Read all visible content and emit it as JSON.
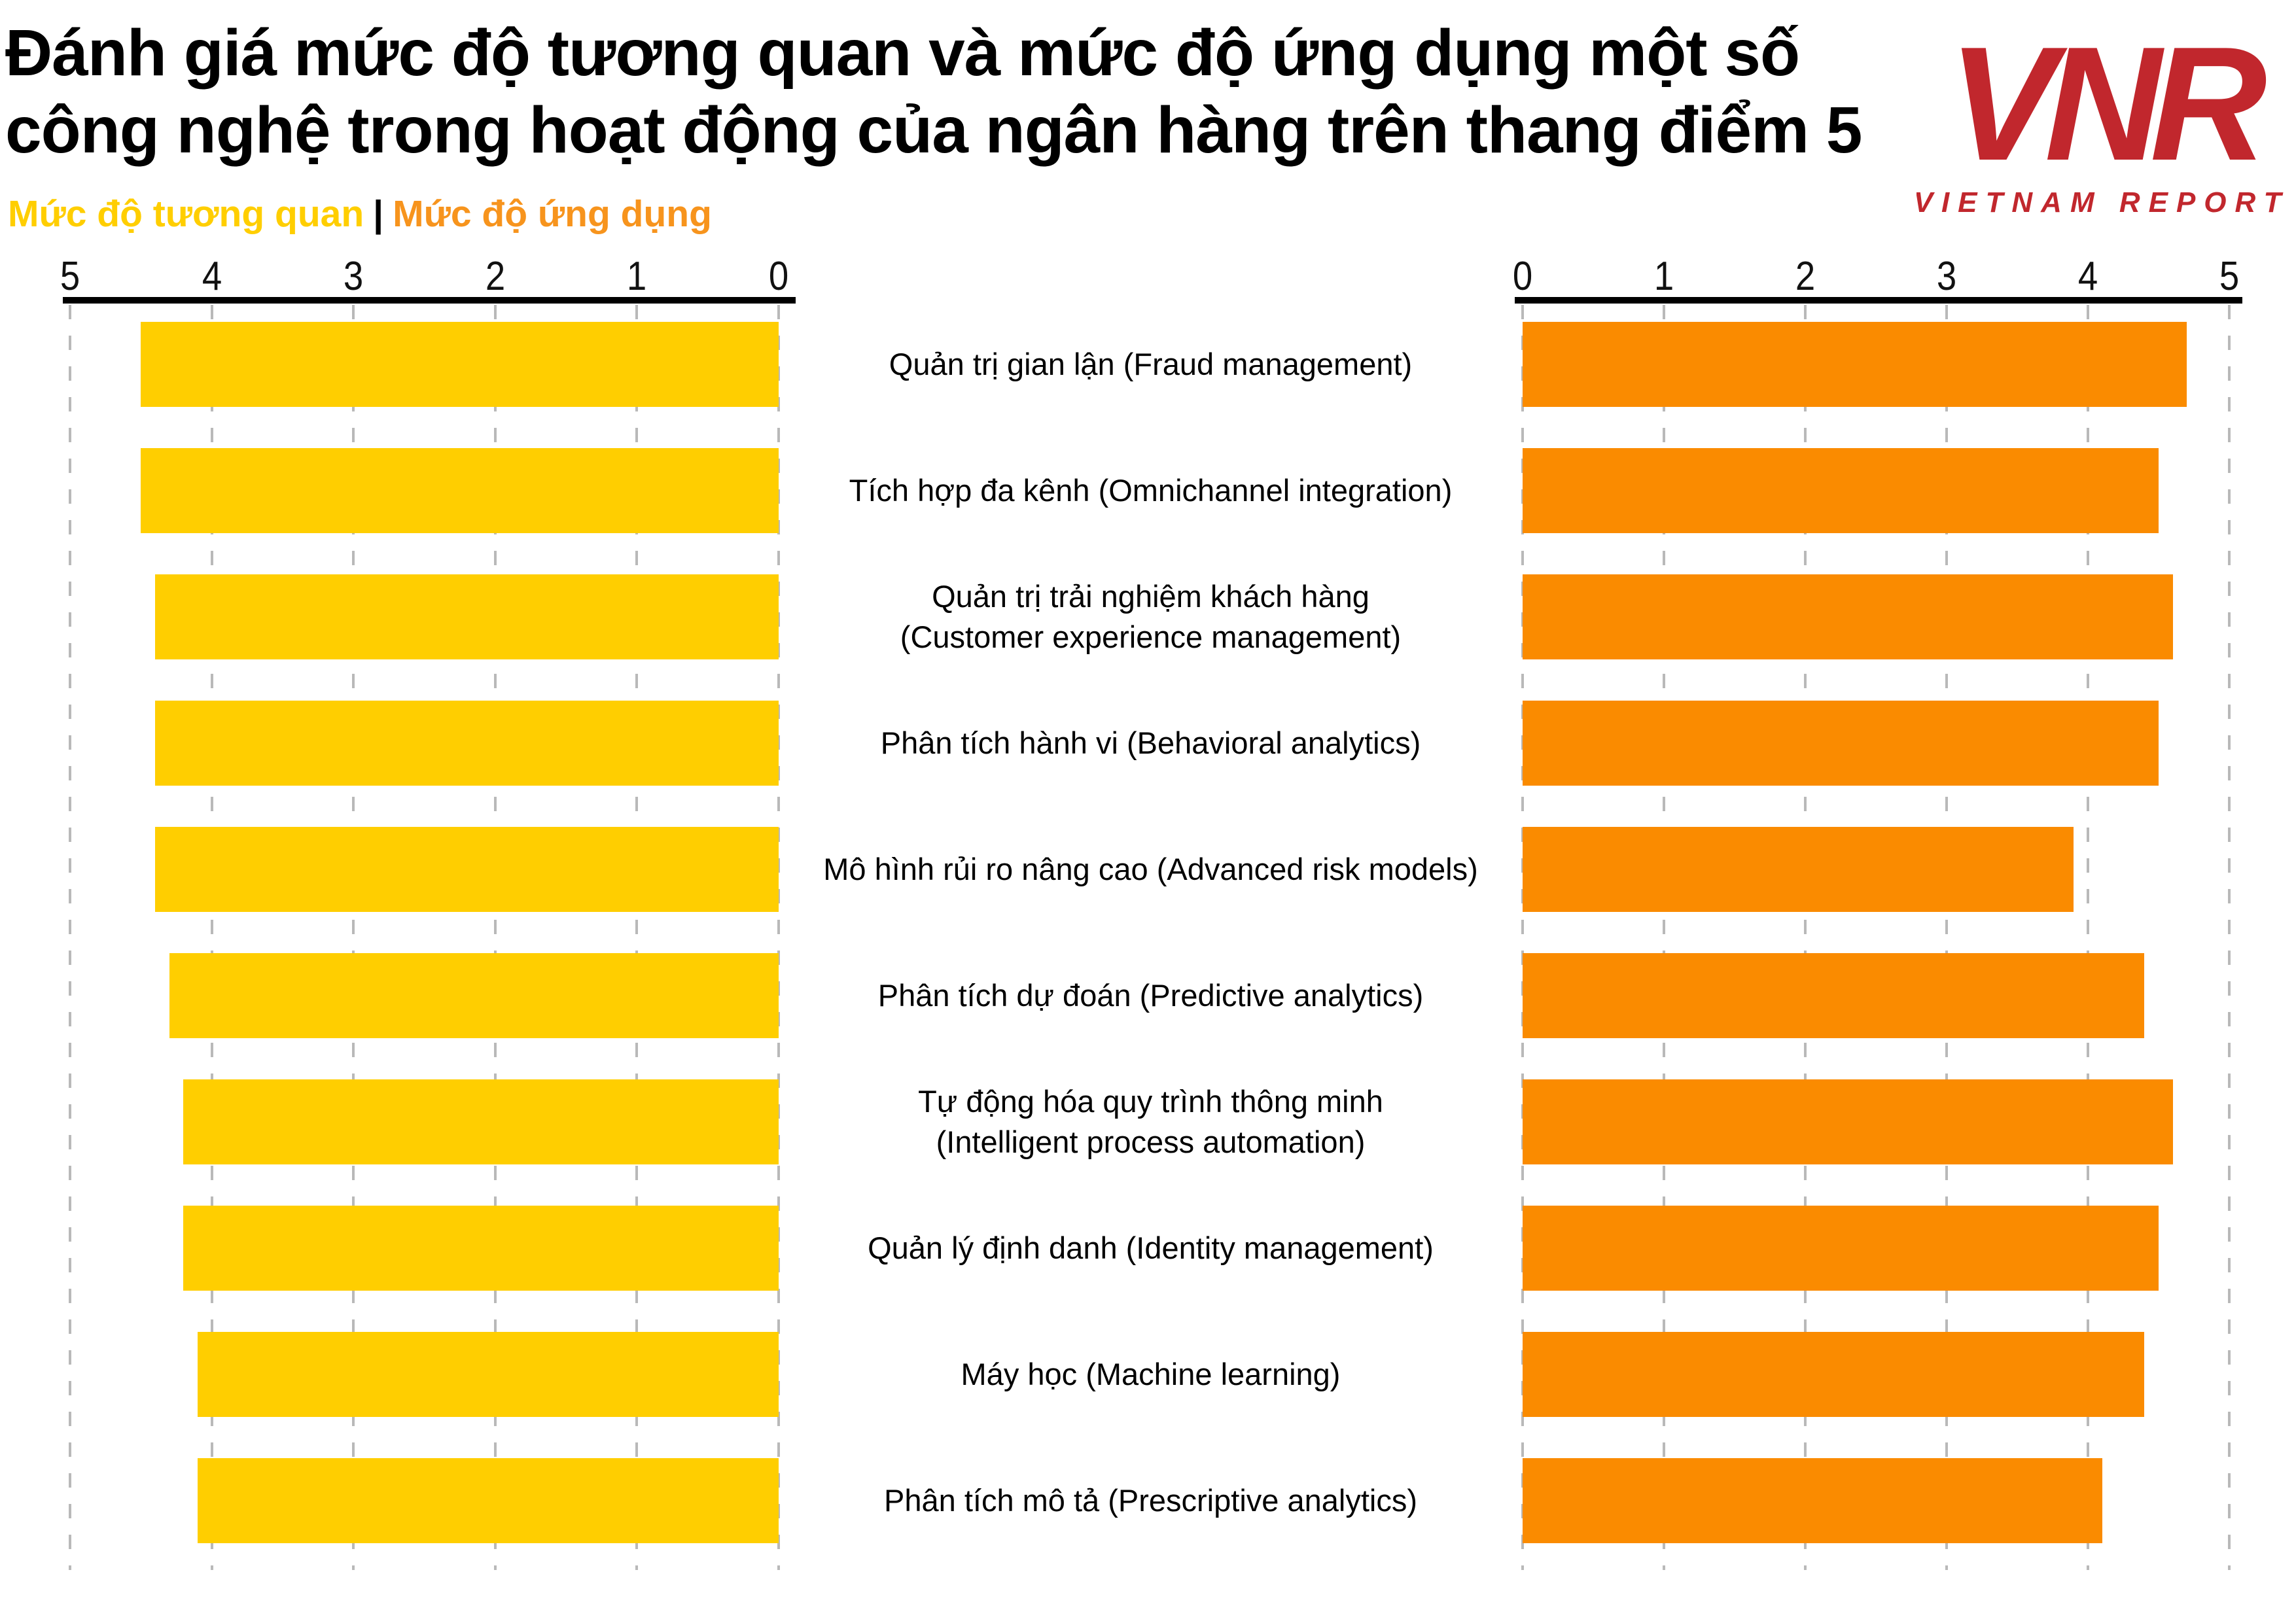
{
  "title": {
    "line1": "Đánh giá mức độ tương quan và mức độ ứng dụng một số",
    "line2": "công nghệ trong hoạt động của ngân hàng trên thang điểm 5"
  },
  "logo": {
    "acronym": "VNR",
    "name": "VIETNAM REPORT",
    "color": "#C1272D"
  },
  "legend": {
    "left_label": "Mức độ tương quan",
    "separator": "|",
    "right_label": "Mức độ ứng dụng",
    "left_color": "#FFCE00",
    "right_color": "#F7941D"
  },
  "chart_data": {
    "type": "bar",
    "orientation": "horizontal-diverging",
    "title": "Đánh giá mức độ tương quan và mức độ ứng dụng một số công nghệ trong hoạt động của ngân hàng trên thang điểm 5",
    "axis": {
      "min": 0,
      "max": 5,
      "ticks_left": [
        "5",
        "4",
        "3",
        "2",
        "1",
        "0"
      ],
      "ticks_right": [
        "0",
        "1",
        "2",
        "3",
        "4",
        "5"
      ],
      "grid": "dashed vertical lines at each integer"
    },
    "legend_position": "top-left",
    "categories": [
      [
        "Quản trị gian lận (Fraud management)"
      ],
      [
        "Tích hợp đa kênh (Omnichannel integration)"
      ],
      [
        "Quản trị trải nghiệm khách hàng",
        "(Customer experience management)"
      ],
      [
        "Phân tích hành vi (Behavioral analytics)"
      ],
      [
        "Mô hình rủi ro nâng cao (Advanced risk models)"
      ],
      [
        "Phân tích dự đoán (Predictive analytics)"
      ],
      [
        "Tự động hóa quy trình thông minh",
        "(Intelligent process automation)"
      ],
      [
        "Quản lý định danh (Identity management)"
      ],
      [
        "Máy học (Machine learning)"
      ],
      [
        "Phân tích mô tả (Prescriptive analytics)"
      ]
    ],
    "series": [
      {
        "name": "Mức độ tương quan",
        "side": "left",
        "color": "#FFCE00",
        "values": [
          4.5,
          4.5,
          4.4,
          4.4,
          4.4,
          4.3,
          4.2,
          4.2,
          4.1,
          4.1
        ]
      },
      {
        "name": "Mức độ ứng dụng",
        "side": "right",
        "color": "#FA8B00",
        "values": [
          4.7,
          4.5,
          4.6,
          4.5,
          3.9,
          4.4,
          4.6,
          4.5,
          4.4,
          4.1
        ]
      }
    ]
  }
}
